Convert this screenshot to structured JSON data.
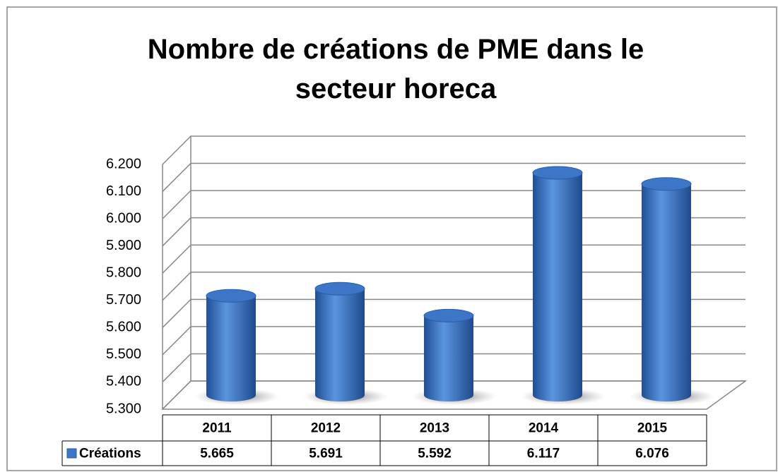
{
  "chart_data": {
    "type": "bar",
    "title": "Nombre de créations de PME dans le secteur horeca",
    "categories": [
      "2011",
      "2012",
      "2013",
      "2014",
      "2015"
    ],
    "series": [
      {
        "name": "Créations",
        "color": "#3d76c6",
        "values": [
          5665,
          5691,
          5592,
          6117,
          6076
        ],
        "value_labels": [
          "5.665",
          "5.691",
          "5.592",
          "6.117",
          "6.076"
        ]
      }
    ],
    "ylim": [
      5300,
      6200
    ],
    "yticks": [
      {
        "value": 5300,
        "label": "5.300"
      },
      {
        "value": 5400,
        "label": "5.400"
      },
      {
        "value": 5500,
        "label": "5.500"
      },
      {
        "value": 5600,
        "label": "5.600"
      },
      {
        "value": 5700,
        "label": "5.700"
      },
      {
        "value": 5800,
        "label": "5.800"
      },
      {
        "value": 5900,
        "label": "5.900"
      },
      {
        "value": 6000,
        "label": "6.000"
      },
      {
        "value": 6100,
        "label": "6.100"
      },
      {
        "value": 6200,
        "label": "6.200"
      }
    ],
    "grid": true
  }
}
